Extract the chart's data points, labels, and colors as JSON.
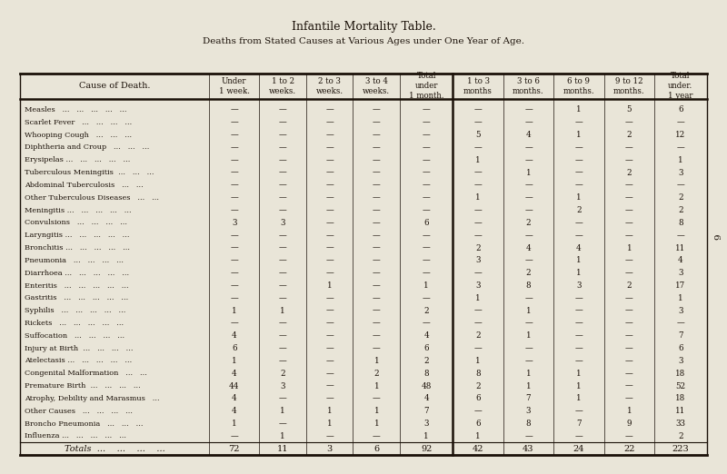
{
  "title": "Infantile Mortality Table.",
  "subtitle": "Deaths from Stated Causes at Various Ages under One Year of Age.",
  "bg_color": "#e9e5d8",
  "text_color": "#1a1008",
  "col_headers": [
    "Under\n1 week.",
    "1 to 2\nweeks.",
    "2 to 3\nweeks.",
    "3 to 4\nweeks.",
    "Total\nunder\n1 month.",
    "1 to 3\nmonths",
    "3 to 6\nmonths.",
    "6 to 9\nmonths.",
    "9 to 12\nmonths.",
    "Total\nunder.\n1 year"
  ],
  "causes": [
    "Measles   ...   ...   ...   ...   ...",
    "Scarlet Fever   ...   ...   ...   ...",
    "Whooping Cough   ...   ...   ...",
    "Diphtheria and Croup   ...   ...   ...",
    "Erysipelas ...   ...   ...   ...   ...",
    "Tuberculous Meningitis  ...   ...   ...",
    "Abdominal Tuberculosis   ...   ...",
    "Other Tuberculous Diseases   ...   ...",
    "Meningitis ...   ...   ...   ...   ...",
    "Convulsions   ...   ...   ...   ...",
    "Laryngitis ...   ...   ...   ...   ...",
    "Bronchitis ...   ...   ...   ...   ...",
    "Pneumonia   ...   ...   ...   ...",
    "Diarrhoea ...   ...   ...   ...   ...",
    "Enteritis   ...   ...   ...   ...   ...",
    "Gastritis   ...   ...   ...   ...   ...",
    "Syphilis   ...   ...   ...   ...   ...",
    "Rickets   ...   ...   ...   ...   ...",
    "Suffocation   ...   ...   ...   ...",
    "Injury at Birth  ...   ...   ...   ...",
    "Atelectasis ...   ...   ...   ...   ...",
    "Congenital Malformation   ...   ...",
    "Premature Birth  ...   ...   ...   ...",
    "Atrophy, Debility and Marasmus   ...",
    "Other Causes   ...   ...   ...   ...",
    "Broncho Pneumonia   ...   ...   ...",
    "Influenza ...   ...   ...   ...   ..."
  ],
  "data": [
    [
      "—",
      "—",
      "—",
      "—",
      "—",
      "—",
      "—",
      "1",
      "5",
      "6"
    ],
    [
      "—",
      "—",
      "—",
      "—",
      "—",
      "—",
      "—",
      "—",
      "—",
      "—"
    ],
    [
      "—",
      "—",
      "—",
      "—",
      "—",
      "5",
      "4",
      "1",
      "2",
      "12"
    ],
    [
      "—",
      "—",
      "—",
      "—",
      "—",
      "—",
      "—",
      "—",
      "—",
      "—"
    ],
    [
      "—",
      "—",
      "—",
      "—",
      "—",
      "1",
      "—",
      "—",
      "—",
      "1"
    ],
    [
      "—",
      "—",
      "—",
      "—",
      "—",
      "—",
      "1",
      "—",
      "2",
      "3"
    ],
    [
      "—",
      "—",
      "—",
      "—",
      "—",
      "—",
      "—",
      "—",
      "—",
      "—"
    ],
    [
      "—",
      "—",
      "—",
      "—",
      "—",
      "1",
      "—",
      "1",
      "—",
      "2"
    ],
    [
      "—",
      "—",
      "—",
      "—",
      "—",
      "—",
      "—",
      "2",
      "—",
      "2"
    ],
    [
      "3",
      "3",
      "—",
      "—",
      "6",
      "—",
      "2",
      "—",
      "—",
      "8"
    ],
    [
      "—",
      "—",
      "—",
      "—",
      "—",
      "—",
      "—",
      "—",
      "—",
      "—"
    ],
    [
      "—",
      "—",
      "—",
      "—",
      "—",
      "2",
      "4",
      "4",
      "1",
      "11"
    ],
    [
      "—",
      "—",
      "—",
      "—",
      "—",
      "3",
      "—",
      "1",
      "—",
      "4"
    ],
    [
      "—",
      "—",
      "—",
      "—",
      "—",
      "—",
      "2",
      "1",
      "—",
      "3"
    ],
    [
      "—",
      "—",
      "1",
      "—",
      "1",
      "3",
      "8",
      "3",
      "2",
      "17"
    ],
    [
      "—",
      "—",
      "—",
      "—",
      "—",
      "1",
      "—",
      "—",
      "—",
      "1"
    ],
    [
      "1",
      "1",
      "—",
      "—",
      "2",
      "—",
      "1",
      "—",
      "—",
      "3"
    ],
    [
      "—",
      "—",
      "—",
      "—",
      "—",
      "—",
      "—",
      "—",
      "—",
      "—"
    ],
    [
      "4",
      "—",
      "—",
      "—",
      "4",
      "2",
      "1",
      "—",
      "—",
      "7"
    ],
    [
      "6",
      "—",
      "—",
      "—",
      "6",
      "—",
      "—",
      "—",
      "—",
      "6"
    ],
    [
      "1",
      "—",
      "—",
      "1",
      "2",
      "1",
      "—",
      "—",
      "—",
      "3"
    ],
    [
      "4",
      "2",
      "—",
      "2",
      "8",
      "8",
      "1",
      "1",
      "—",
      "18"
    ],
    [
      "44",
      "3",
      "—",
      "1",
      "48",
      "2",
      "1",
      "1",
      "—",
      "52"
    ],
    [
      "4",
      "—",
      "—",
      "—",
      "4",
      "6",
      "7",
      "1",
      "—",
      "18"
    ],
    [
      "4",
      "1",
      "1",
      "1",
      "7",
      "—",
      "3",
      "—",
      "1",
      "11"
    ],
    [
      "1",
      "—",
      "1",
      "1",
      "3",
      "6",
      "8",
      "7",
      "9",
      "33"
    ],
    [
      "—",
      "1",
      "—",
      "—",
      "1",
      "1",
      "—",
      "—",
      "—",
      "2"
    ]
  ],
  "totals": [
    "72",
    "11",
    "3",
    "6",
    "92",
    "42",
    "43",
    "24",
    "22",
    "223"
  ]
}
